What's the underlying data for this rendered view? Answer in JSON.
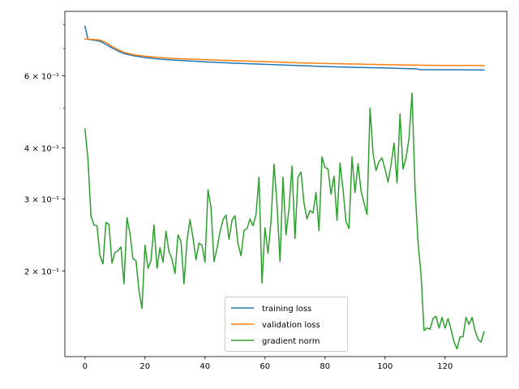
{
  "chart_data": {
    "type": "line",
    "title": "",
    "xlabel": "",
    "ylabel": "",
    "xlim": [
      -6.7,
      140.6
    ],
    "ylim": [
      0.1235,
      0.8624
    ],
    "yscale": "log",
    "grid": false,
    "legend_position": "bottom-center",
    "x_ticks": [
      0,
      20,
      40,
      60,
      80,
      100,
      120
    ],
    "x_tick_labels": [
      "0",
      "20",
      "40",
      "60",
      "80",
      "100",
      "120"
    ],
    "y_ticks": [
      0.2,
      0.3,
      0.4,
      0.6
    ],
    "y_tick_labels": [
      "2 × 10⁻¹",
      "3 × 10⁻¹",
      "4 × 10⁻¹",
      "6 × 10⁻¹"
    ],
    "y_minor_ticks": [
      0.5,
      0.7,
      0.8
    ],
    "series": [
      {
        "name": "training loss",
        "color": "#1f77b4",
        "points": [
          [
            0,
            0.793
          ],
          [
            1,
            0.737
          ],
          [
            3,
            0.733
          ],
          [
            5,
            0.729
          ],
          [
            7,
            0.716
          ],
          [
            9,
            0.702
          ],
          [
            11,
            0.69
          ],
          [
            13,
            0.68
          ],
          [
            16,
            0.672
          ],
          [
            20,
            0.665
          ],
          [
            25,
            0.659
          ],
          [
            30,
            0.655
          ],
          [
            40,
            0.649
          ],
          [
            50,
            0.644
          ],
          [
            60,
            0.64
          ],
          [
            70,
            0.636
          ],
          [
            80,
            0.632
          ],
          [
            90,
            0.629
          ],
          [
            100,
            0.627
          ],
          [
            110,
            0.624
          ],
          [
            112,
            0.621
          ],
          [
            120,
            0.621
          ],
          [
            133,
            0.62
          ]
        ]
      },
      {
        "name": "validation loss",
        "color": "#ff7f0e",
        "points": [
          [
            0,
            0.738
          ],
          [
            2,
            0.737
          ],
          [
            5,
            0.734
          ],
          [
            7,
            0.724
          ],
          [
            9,
            0.708
          ],
          [
            11,
            0.695
          ],
          [
            13,
            0.685
          ],
          [
            16,
            0.676
          ],
          [
            20,
            0.67
          ],
          [
            25,
            0.665
          ],
          [
            30,
            0.661
          ],
          [
            40,
            0.657
          ],
          [
            50,
            0.653
          ],
          [
            60,
            0.65
          ],
          [
            70,
            0.646
          ],
          [
            80,
            0.643
          ],
          [
            90,
            0.641
          ],
          [
            100,
            0.639
          ],
          [
            110,
            0.637
          ],
          [
            120,
            0.636
          ],
          [
            133,
            0.636
          ]
        ]
      },
      {
        "name": "gradient norm",
        "color": "#2ca02c",
        "points": [
          [
            0,
            0.445
          ],
          [
            1,
            0.375
          ],
          [
            2,
            0.272
          ],
          [
            3,
            0.259
          ],
          [
            4,
            0.258
          ],
          [
            5,
            0.218
          ],
          [
            6,
            0.208
          ],
          [
            7,
            0.263
          ],
          [
            8,
            0.26
          ],
          [
            9,
            0.209
          ],
          [
            10,
            0.222
          ],
          [
            11,
            0.224
          ],
          [
            12,
            0.229
          ],
          [
            13,
            0.186
          ],
          [
            14,
            0.27
          ],
          [
            15,
            0.247
          ],
          [
            16,
            0.214
          ],
          [
            17,
            0.212
          ],
          [
            18,
            0.179
          ],
          [
            19,
            0.162
          ],
          [
            20,
            0.231
          ],
          [
            21,
            0.203
          ],
          [
            22,
            0.212
          ],
          [
            23,
            0.259
          ],
          [
            24,
            0.203
          ],
          [
            25,
            0.228
          ],
          [
            26,
            0.21
          ],
          [
            27,
            0.25
          ],
          [
            28,
            0.223
          ],
          [
            29,
            0.214
          ],
          [
            30,
            0.197
          ],
          [
            31,
            0.245
          ],
          [
            32,
            0.236
          ],
          [
            33,
            0.186
          ],
          [
            34,
            0.237
          ],
          [
            35,
            0.267
          ],
          [
            36,
            0.241
          ],
          [
            37,
            0.213
          ],
          [
            38,
            0.234
          ],
          [
            39,
            0.231
          ],
          [
            40,
            0.21
          ],
          [
            41,
            0.316
          ],
          [
            42,
            0.286
          ],
          [
            43,
            0.211
          ],
          [
            44,
            0.227
          ],
          [
            45,
            0.249
          ],
          [
            46,
            0.267
          ],
          [
            47,
            0.274
          ],
          [
            48,
            0.239
          ],
          [
            49,
            0.266
          ],
          [
            50,
            0.273
          ],
          [
            51,
            0.233
          ],
          [
            52,
            0.218
          ],
          [
            53,
            0.251
          ],
          [
            54,
            0.254
          ],
          [
            55,
            0.268
          ],
          [
            56,
            0.258
          ],
          [
            57,
            0.275
          ],
          [
            58,
            0.339
          ],
          [
            59,
            0.187
          ],
          [
            60,
            0.255
          ],
          [
            61,
            0.221
          ],
          [
            62,
            0.264
          ],
          [
            63,
            0.365
          ],
          [
            64,
            0.291
          ],
          [
            65,
            0.211
          ],
          [
            66,
            0.339
          ],
          [
            67,
            0.245
          ],
          [
            68,
            0.284
          ],
          [
            69,
            0.361
          ],
          [
            70,
            0.24
          ],
          [
            71,
            0.339
          ],
          [
            72,
            0.349
          ],
          [
            73,
            0.293
          ],
          [
            74,
            0.268
          ],
          [
            75,
            0.281
          ],
          [
            76,
            0.277
          ],
          [
            77,
            0.311
          ],
          [
            78,
            0.251
          ],
          [
            79,
            0.38
          ],
          [
            80,
            0.358
          ],
          [
            81,
            0.355
          ],
          [
            82,
            0.308
          ],
          [
            83,
            0.341
          ],
          [
            84,
            0.266
          ],
          [
            85,
            0.367
          ],
          [
            86,
            0.317
          ],
          [
            87,
            0.264
          ],
          [
            88,
            0.254
          ],
          [
            89,
            0.38
          ],
          [
            90,
            0.311
          ],
          [
            91,
            0.366
          ],
          [
            92,
            0.314
          ],
          [
            93,
            0.293
          ],
          [
            94,
            0.275
          ],
          [
            95,
            0.5
          ],
          [
            96,
            0.388
          ],
          [
            97,
            0.352
          ],
          [
            98,
            0.37
          ],
          [
            99,
            0.378
          ],
          [
            100,
            0.355
          ],
          [
            101,
            0.33
          ],
          [
            102,
            0.363
          ],
          [
            103,
            0.411
          ],
          [
            104,
            0.328
          ],
          [
            105,
            0.484
          ],
          [
            106,
            0.355
          ],
          [
            107,
            0.378
          ],
          [
            108,
            0.422
          ],
          [
            109,
            0.544
          ],
          [
            110,
            0.32
          ],
          [
            111,
            0.235
          ],
          [
            112,
            0.196
          ],
          [
            113,
            0.143
          ],
          [
            114,
            0.145
          ],
          [
            115,
            0.144
          ],
          [
            116,
            0.153
          ],
          [
            117,
            0.155
          ],
          [
            118,
            0.145
          ],
          [
            119,
            0.154
          ],
          [
            120,
            0.145
          ],
          [
            121,
            0.153
          ],
          [
            122,
            0.144
          ],
          [
            123,
            0.134
          ],
          [
            124,
            0.129
          ],
          [
            125,
            0.138
          ],
          [
            126,
            0.138
          ],
          [
            127,
            0.154
          ],
          [
            128,
            0.148
          ],
          [
            129,
            0.154
          ],
          [
            130,
            0.143
          ],
          [
            131,
            0.136
          ],
          [
            132,
            0.134
          ],
          [
            133,
            0.142
          ]
        ]
      }
    ]
  }
}
